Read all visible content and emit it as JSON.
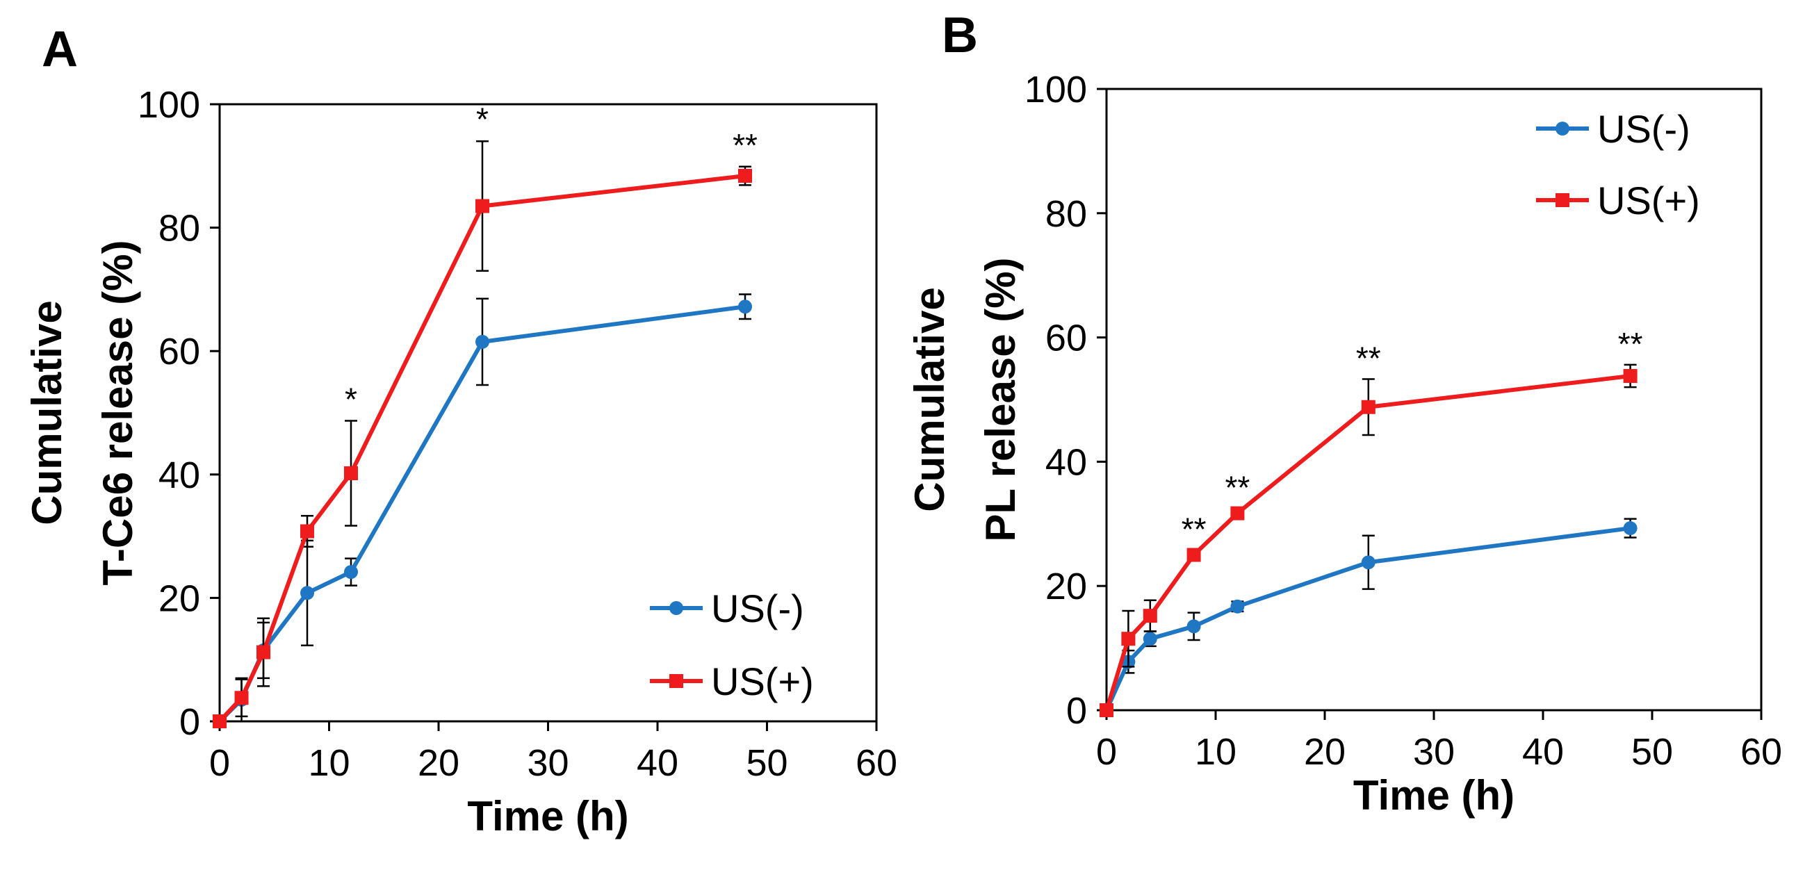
{
  "chart_data": [
    {
      "panel": "A",
      "type": "line",
      "xlabel": "Time (h)",
      "ylabel_lines": [
        "Cumulative",
        "T-Ce6 release (%)"
      ],
      "xlim": [
        0,
        60
      ],
      "ylim": [
        0,
        100
      ],
      "xticks": [
        0,
        10,
        20,
        30,
        40,
        50,
        60
      ],
      "yticks": [
        0,
        20,
        40,
        60,
        80,
        100
      ],
      "grid": false,
      "legend_position": "bottom-right",
      "x": [
        0,
        2,
        4,
        8,
        12,
        24,
        48
      ],
      "series": [
        {
          "name": "US(-)",
          "color": "#1f77c4",
          "marker": "circle",
          "values": [
            0,
            3.5,
            11.5,
            20.8,
            24.2,
            61.5,
            67.2
          ],
          "errors": [
            0.5,
            3.5,
            4.5,
            8.5,
            2.2,
            7.0,
            2.0
          ]
        },
        {
          "name": "US(+)",
          "color": "#ee1c1c",
          "marker": "square",
          "values": [
            0,
            3.8,
            11.2,
            30.8,
            40.2,
            83.5,
            88.4
          ],
          "errors": [
            0.5,
            3.0,
            5.5,
            2.5,
            8.5,
            10.5,
            1.5
          ]
        }
      ],
      "annotations": [
        {
          "x": 12,
          "y": 48.8,
          "text": "*"
        },
        {
          "x": 24,
          "y": 94.2,
          "text": "*"
        },
        {
          "x": 48,
          "y": 90.0,
          "text": "**"
        }
      ]
    },
    {
      "panel": "B",
      "type": "line",
      "xlabel": "Time (h)",
      "ylabel_lines": [
        "Cumulative",
        "PL release (%)"
      ],
      "xlim": [
        0,
        60
      ],
      "ylim": [
        0,
        100
      ],
      "xticks": [
        0,
        10,
        20,
        30,
        40,
        50,
        60
      ],
      "yticks": [
        0,
        20,
        40,
        60,
        80,
        100
      ],
      "grid": false,
      "legend_position": "top-right",
      "x": [
        0,
        2,
        4,
        8,
        12,
        24,
        48
      ],
      "series": [
        {
          "name": "US(-)",
          "color": "#1f77c4",
          "marker": "circle",
          "values": [
            0,
            7.8,
            11.5,
            13.5,
            16.7,
            23.8,
            29.3
          ],
          "errors": [
            0.5,
            1.8,
            1.2,
            2.2,
            0.8,
            4.3,
            1.5
          ]
        },
        {
          "name": "US(+)",
          "color": "#ee1c1c",
          "marker": "square",
          "values": [
            0,
            11.5,
            15.2,
            25.0,
            31.7,
            48.8,
            53.8
          ],
          "errors": [
            0.5,
            4.5,
            2.5,
            0.8,
            0.8,
            4.5,
            1.8
          ]
        }
      ],
      "annotations": [
        {
          "x": 8,
          "y": 25.8,
          "text": "**"
        },
        {
          "x": 12,
          "y": 32.5,
          "text": "**"
        },
        {
          "x": 24,
          "y": 53.3,
          "text": "**"
        },
        {
          "x": 48,
          "y": 55.6,
          "text": "**"
        }
      ]
    }
  ]
}
